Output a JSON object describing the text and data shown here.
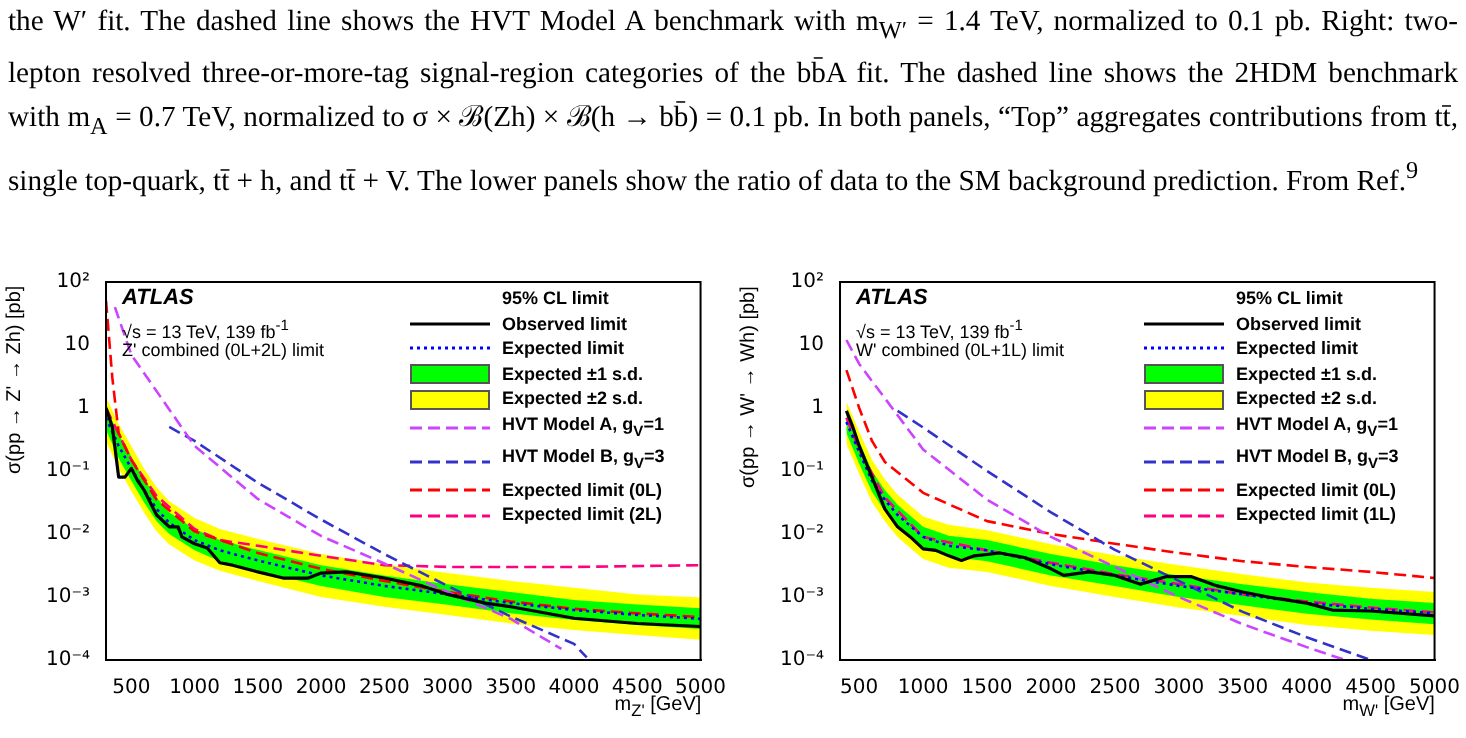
{
  "chart_data": [
    {
      "type": "line",
      "xlabel": "m$_{Z'}$ [GeV]",
      "ylabel": "σ(pp → Z' → Zh) [pb]",
      "legend_title": "95% CL limit",
      "legend": "top right",
      "log": "y",
      "grid": false,
      "xlim": [
        300,
        5000
      ],
      "xticks": [
        500,
        1000,
        1500,
        2000,
        2500,
        3000,
        3500,
        4000,
        4500,
        5000
      ],
      "ylim": [
        0.0001,
        100
      ],
      "yticks": [
        {
          "value": 0.0001,
          "label": "10⁻⁴"
        },
        {
          "value": 0.001,
          "label": "10⁻³"
        },
        {
          "value": 0.01,
          "label": "10⁻²"
        },
        {
          "value": 0.1,
          "label": "10⁻¹"
        },
        {
          "value": 1,
          "label": "1"
        },
        {
          "value": 10,
          "label": "10"
        },
        {
          "value": 100,
          "label": "10²"
        }
      ],
      "annotations": [
        "ATLAS",
        "√s = 13 TeV, 139 fb$^{-1}$",
        "Z' combined (0L+2L) limit",
        "the W′ fit. The dashed line shows the HVT Model A benchmark with m$_{W′}$ = 1.4 TeV, normalized to 0.1 pb. Right: two-lepton resolved three-or-more-tag signal-region categories of the bb̄A fit. The dashed line shows the 2HDM benchmark with m$_{A}$ = 0.7 TeV, normalized to σ × ℬ(Zh) × ℬ(h → bb̄) = 0.1 pb. In both panels, “Top” aggregates contributions from tt̄, single top-quark, tt̄ + h, and tt̄ + V. The lower panels show the ratio of data to the SM background prediction. From Ref.$^{9}$"
      ],
      "series": [
        {
          "name": "Observed limit",
          "type": "line",
          "line_style": "solid",
          "color": "#000000",
          "x": [
            300,
            350,
            400,
            450,
            500,
            550,
            600,
            700,
            800,
            870,
            900,
            1000,
            1100,
            1200,
            1300,
            1500,
            1700,
            1900,
            2000,
            2200,
            2500,
            2800,
            3000,
            3300,
            3500,
            4000,
            4500,
            5000
          ],
          "values": [
            1.0,
            0.5,
            0.08,
            0.08,
            0.11,
            0.07,
            0.05,
            0.02,
            0.013,
            0.013,
            0.009,
            0.007,
            0.006,
            0.0035,
            0.0032,
            0.0025,
            0.002,
            0.002,
            0.0024,
            0.0025,
            0.002,
            0.0015,
            0.0011,
            0.0008,
            0.0007,
            0.00046,
            0.00038,
            0.00034
          ]
        },
        {
          "name": "Expected limit",
          "type": "line",
          "line_style": "dotted",
          "color": "#0000ff",
          "x": [
            300,
            400,
            500,
            600,
            700,
            800,
            1000,
            1200,
            1500,
            2000,
            2500,
            3000,
            3500,
            4000,
            4500,
            5000
          ],
          "values": [
            0.7,
            0.25,
            0.11,
            0.05,
            0.025,
            0.015,
            0.008,
            0.0055,
            0.0038,
            0.0022,
            0.0015,
            0.0011,
            0.0008,
            0.00062,
            0.00052,
            0.00045
          ]
        },
        {
          "name": "Expected ±1 s.d.",
          "type": "area",
          "color": "#00ff00",
          "x": [
            300,
            400,
            500,
            600,
            700,
            800,
            1000,
            1200,
            1500,
            2000,
            2500,
            3000,
            3500,
            4000,
            4500,
            5000
          ],
          "values": [
            null,
            null,
            null,
            null,
            null,
            null,
            null,
            null,
            null,
            null,
            null,
            null,
            null,
            null,
            null,
            null
          ],
          "upper": [
            1.0,
            0.38,
            0.17,
            0.075,
            0.038,
            0.022,
            0.012,
            0.008,
            0.0056,
            0.0032,
            0.0022,
            0.0016,
            0.0012,
            0.0009,
            0.00076,
            0.00066
          ],
          "lower": [
            0.45,
            0.16,
            0.07,
            0.032,
            0.016,
            0.01,
            0.0055,
            0.0037,
            0.0026,
            0.0015,
            0.001,
            0.00075,
            0.00055,
            0.00043,
            0.00036,
            0.00031
          ]
        },
        {
          "name": "Expected ±2 s.d.",
          "type": "area",
          "color": "#ffff00",
          "x": [
            300,
            400,
            500,
            600,
            700,
            800,
            1000,
            1200,
            1500,
            2000,
            2500,
            3000,
            3500,
            4000,
            4500,
            5000
          ],
          "values": [
            null,
            null,
            null,
            null,
            null,
            null,
            null,
            null,
            null,
            null,
            null,
            null,
            null,
            null,
            null,
            null
          ],
          "upper": [
            1.5,
            0.55,
            0.25,
            0.11,
            0.055,
            0.033,
            0.018,
            0.012,
            0.0083,
            0.0048,
            0.0033,
            0.0024,
            0.0018,
            0.0014,
            0.0011,
            0.00098
          ],
          "lower": [
            0.3,
            0.11,
            0.048,
            0.022,
            0.011,
            0.0068,
            0.0038,
            0.0026,
            0.0018,
            0.001,
            0.0007,
            0.00052,
            0.00038,
            0.0003,
            0.00025,
            0.00021
          ]
        },
        {
          "name": "HVT Model A, g$_{V}$=1",
          "type": "line",
          "line_style": "dashed",
          "color": "#cc44ff",
          "x": [
            370,
            500,
            1000,
            1500,
            2000,
            2500,
            3000,
            3500,
            3900
          ],
          "values": [
            40,
            7,
            0.25,
            0.036,
            0.0093,
            0.0034,
            0.0012,
            0.00045,
            0.00015
          ]
        },
        {
          "name": "HVT Model B, g$_{V}$=3",
          "type": "line",
          "line_style": "dashed",
          "color": "#3333cc",
          "x": [
            800,
            1000,
            1500,
            2000,
            2500,
            3000,
            3500,
            4000,
            4100
          ],
          "values": [
            0.5,
            0.3,
            0.065,
            0.017,
            0.0048,
            0.0015,
            0.00049,
            0.00018,
            0.00011
          ]
        },
        {
          "name": "Expected limit (0L)",
          "type": "line",
          "line_style": "dashed",
          "color": "#ff0000",
          "x": [
            300,
            350,
            400,
            500,
            700,
            1000,
            1500,
            2000,
            2500,
            3000,
            3500,
            4000,
            4500,
            5000
          ],
          "values": [
            50,
            3,
            0.4,
            0.15,
            0.035,
            0.011,
            0.005,
            0.0028,
            0.0018,
            0.0012,
            0.00085,
            0.00065,
            0.00055,
            0.00048
          ]
        },
        {
          "name": "Expected limit (2L)",
          "type": "line",
          "line_style": "dashed",
          "color": "#ff0080",
          "x": [
            300,
            500,
            700,
            1000,
            1200,
            1500,
            2000,
            2500,
            3000,
            4000,
            5000
          ],
          "values": [
            1,
            0.15,
            0.04,
            0.012,
            0.008,
            0.0065,
            0.0045,
            0.0032,
            0.003,
            0.003,
            0.0032
          ]
        }
      ]
    },
    {
      "type": "line",
      "xlabel": "m$_{W'}$ [GeV]",
      "ylabel": "σ(pp → W' → Wh) [pb]",
      "legend_title": "95% CL limit",
      "legend": "top right",
      "log": "y",
      "grid": false,
      "xlim": [
        350,
        5000
      ],
      "xticks": [
        500,
        1000,
        1500,
        2000,
        2500,
        3000,
        3500,
        4000,
        4500,
        5000
      ],
      "ylim": [
        0.0001,
        100
      ],
      "yticks": [
        {
          "value": 0.0001,
          "label": "10⁻⁴"
        },
        {
          "value": 0.001,
          "label": "10⁻³"
        },
        {
          "value": 0.01,
          "label": "10⁻²"
        },
        {
          "value": 0.1,
          "label": "10⁻¹"
        },
        {
          "value": 1,
          "label": "1"
        },
        {
          "value": 10,
          "label": "10"
        },
        {
          "value": 100,
          "label": "10²"
        }
      ],
      "annotations": [
        "ATLAS",
        "√s = 13 TeV, 139 fb$^{-1}$",
        "W' combined (0L+1L) limit"
      ],
      "series": [
        {
          "name": "Observed limit",
          "type": "line",
          "line_style": "solid",
          "color": "#000000",
          "x": [
            400,
            450,
            500,
            600,
            700,
            800,
            900,
            1000,
            1100,
            1200,
            1300,
            1400,
            1600,
            1800,
            2000,
            2100,
            2300,
            2500,
            2700,
            2900,
            3100,
            3300,
            3500,
            3700,
            4000,
            4200,
            4500,
            5000
          ],
          "values": [
            0.9,
            0.5,
            0.25,
            0.08,
            0.025,
            0.013,
            0.009,
            0.0058,
            0.0055,
            0.0045,
            0.0038,
            0.0045,
            0.005,
            0.0042,
            0.0028,
            0.0022,
            0.0025,
            0.0022,
            0.0016,
            0.0021,
            0.0021,
            0.0015,
            0.0012,
            0.001,
            0.0008,
            0.00062,
            0.0006,
            0.0005
          ]
        },
        {
          "name": "Expected limit",
          "type": "line",
          "line_style": "dotted",
          "color": "#0000ff",
          "x": [
            400,
            500,
            600,
            700,
            800,
            1000,
            1200,
            1500,
            2000,
            2500,
            3000,
            3500,
            4000,
            4500,
            5000
          ],
          "values": [
            0.6,
            0.2,
            0.07,
            0.035,
            0.02,
            0.009,
            0.0065,
            0.0055,
            0.0033,
            0.0022,
            0.0015,
            0.0011,
            0.0008,
            0.00065,
            0.00055
          ]
        },
        {
          "name": "Expected ±1 s.d.",
          "type": "area",
          "color": "#00ff00",
          "x": [
            400,
            500,
            600,
            700,
            800,
            1000,
            1200,
            1500,
            2000,
            2500,
            3000,
            3500,
            4000,
            4500,
            5000
          ],
          "values": [
            null,
            null,
            null,
            null,
            null,
            null,
            null,
            null,
            null,
            null,
            null,
            null,
            null,
            null,
            null
          ],
          "upper": [
            0.87,
            0.29,
            0.1,
            0.05,
            0.029,
            0.013,
            0.0094,
            0.008,
            0.0048,
            0.0032,
            0.0022,
            0.0016,
            0.0012,
            0.00094,
            0.0008
          ],
          "lower": [
            0.4,
            0.13,
            0.047,
            0.023,
            0.013,
            0.006,
            0.0044,
            0.0037,
            0.0022,
            0.0015,
            0.001,
            0.00074,
            0.00054,
            0.00044,
            0.00037
          ]
        },
        {
          "name": "Expected ±2 s.d.",
          "type": "area",
          "color": "#ffff00",
          "x": [
            400,
            500,
            600,
            700,
            800,
            1000,
            1200,
            1500,
            2000,
            2500,
            3000,
            3500,
            4000,
            4500,
            5000
          ],
          "values": [
            null,
            null,
            null,
            null,
            null,
            null,
            null,
            null,
            null,
            null,
            null,
            null,
            null,
            null,
            null
          ],
          "upper": [
            1.26,
            0.42,
            0.15,
            0.074,
            0.042,
            0.019,
            0.014,
            0.0115,
            0.0069,
            0.0046,
            0.0032,
            0.0023,
            0.0017,
            0.0014,
            0.0012
          ],
          "lower": [
            0.27,
            0.09,
            0.032,
            0.016,
            0.009,
            0.004,
            0.0029,
            0.0025,
            0.0015,
            0.001,
            0.00068,
            0.0005,
            0.00036,
            0.00029,
            0.00025
          ]
        },
        {
          "name": "HVT Model A, g$_{V}$=1",
          "type": "line",
          "line_style": "dashed",
          "color": "#cc44ff",
          "x": [
            400,
            500,
            1000,
            1500,
            2000,
            2500,
            3000,
            3500,
            4000,
            4300
          ],
          "values": [
            12,
            5,
            0.22,
            0.035,
            0.009,
            0.003,
            0.001,
            0.00037,
            0.00016,
            0.0001
          ]
        },
        {
          "name": "HVT Model B, g$_{V}$=3",
          "type": "line",
          "line_style": "dashed",
          "color": "#3333cc",
          "x": [
            800,
            1000,
            1500,
            2000,
            2500,
            3000,
            3500,
            4000,
            4500
          ],
          "values": [
            0.9,
            0.49,
            0.1,
            0.022,
            0.0056,
            0.0018,
            0.00058,
            0.00023,
            0.0001
          ]
        },
        {
          "name": "Expected limit (0L)",
          "type": "line",
          "line_style": "dashed",
          "color": "#ff0000",
          "x": [
            400,
            500,
            600,
            700,
            1000,
            1500,
            2000,
            2500,
            3000,
            3500,
            4000,
            4500,
            5000
          ],
          "values": [
            4,
            1,
            0.3,
            0.14,
            0.045,
            0.016,
            0.01,
            0.007,
            0.005,
            0.0037,
            0.003,
            0.0025,
            0.002
          ]
        },
        {
          "name": "Expected limit (1L)",
          "type": "line",
          "line_style": "dashed",
          "color": "#ff0080",
          "x": [
            400,
            500,
            700,
            1000,
            1500,
            2000,
            2500,
            3000,
            3500,
            4000,
            4500,
            5000
          ],
          "values": [
            0.7,
            0.22,
            0.038,
            0.009,
            0.0055,
            0.0035,
            0.0023,
            0.0016,
            0.0011,
            0.00085,
            0.00068,
            0.00057
          ]
        }
      ]
    }
  ]
}
